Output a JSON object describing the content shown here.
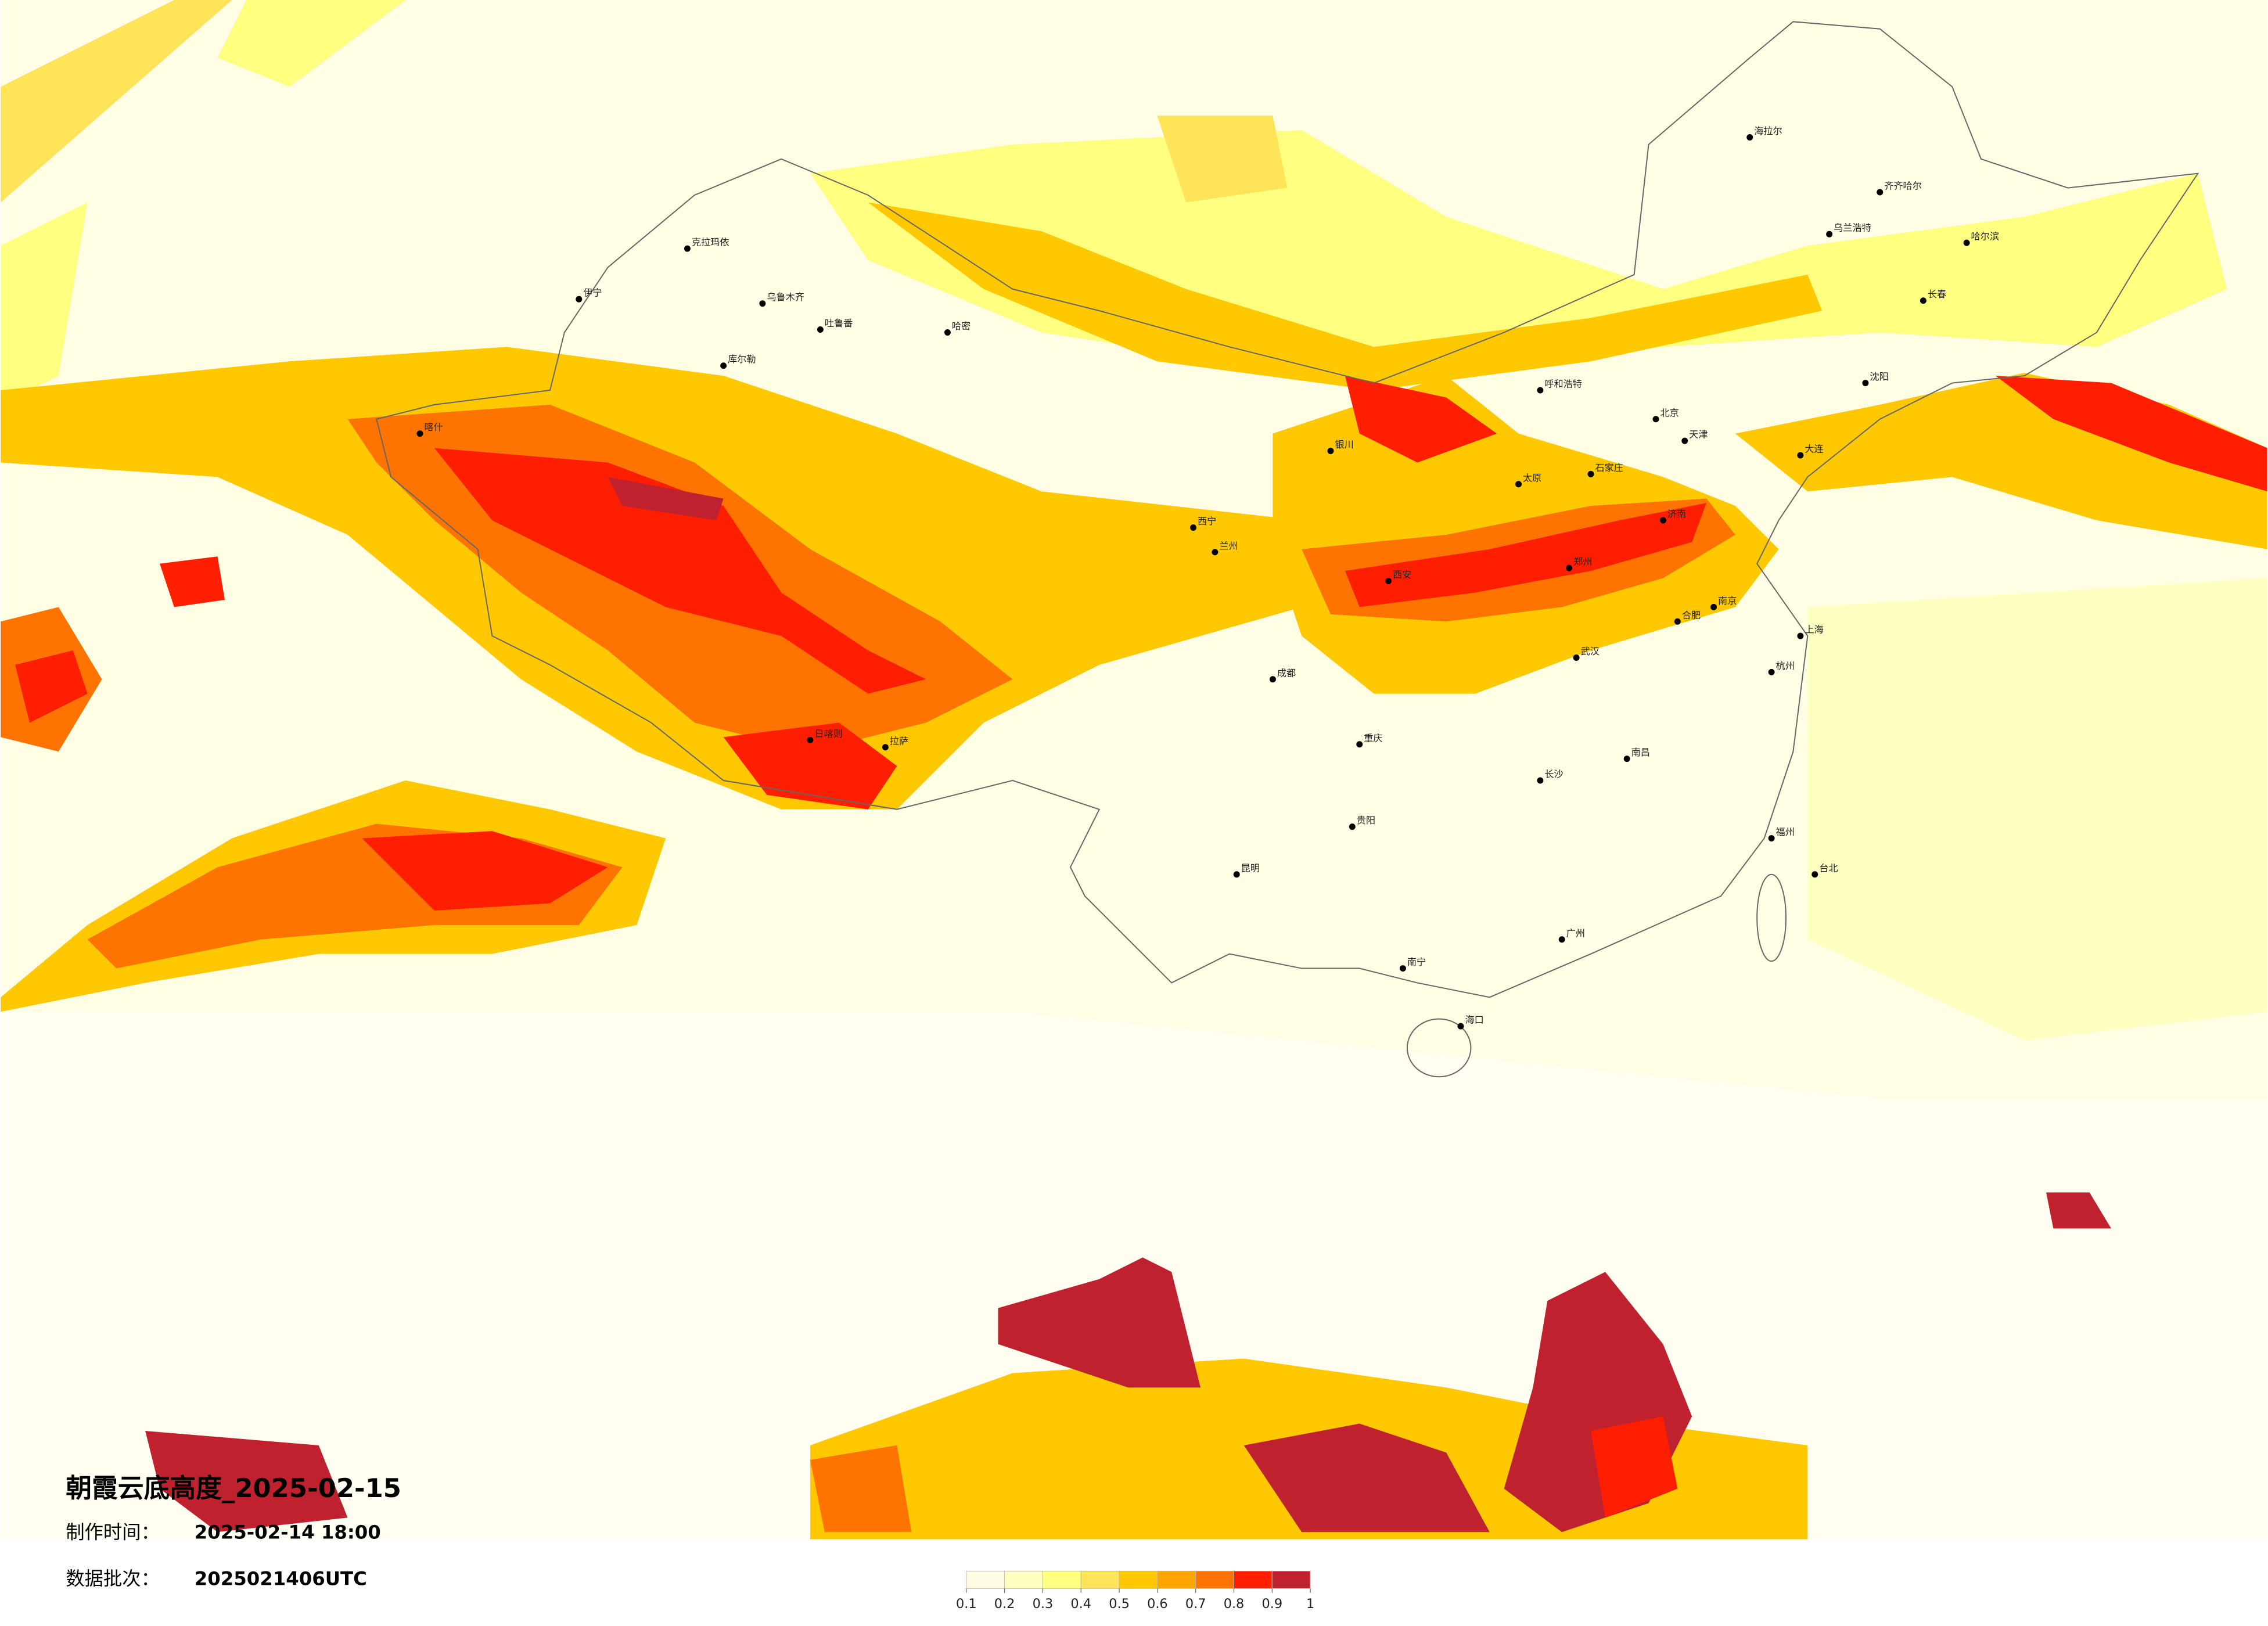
{
  "map": {
    "title": "朝霞云底高度_2025-02-15",
    "made_time_label": "制作时间：",
    "made_time": "2025-02-14 18:00",
    "batch_label": "数据批次：",
    "batch": "2025021406UTC",
    "cities": [
      "克拉玛依",
      "乌鲁木齐",
      "吐鲁番",
      "哈密",
      "库尔勒",
      "伊宁",
      "喀什",
      "日喀则",
      "拉萨",
      "西宁",
      "兰州",
      "银川",
      "呼和浩特",
      "北京",
      "天津",
      "石家庄",
      "太原",
      "济南",
      "郑州",
      "西安",
      "武汉",
      "合肥",
      "南京",
      "上海",
      "杭州",
      "南昌",
      "长沙",
      "福州",
      "广州",
      "南宁",
      "海口",
      "昆明",
      "贵阳",
      "成都",
      "重庆",
      "哈尔滨",
      "长春",
      "沈阳",
      "大连",
      "台北",
      "海拉尔",
      "齐齐哈尔",
      "乌兰浩特"
    ]
  },
  "legend": {
    "ticks": [
      0.1,
      0.2,
      0.3,
      0.4,
      0.5,
      0.6,
      0.7,
      0.8,
      0.9,
      1
    ],
    "colors": [
      "#fffbe3",
      "#ffffc2",
      "#ffff80",
      "#ffe45a",
      "#ffc800",
      "#ffa500",
      "#ff7300",
      "#ff1e00",
      "#c0212f"
    ]
  }
}
